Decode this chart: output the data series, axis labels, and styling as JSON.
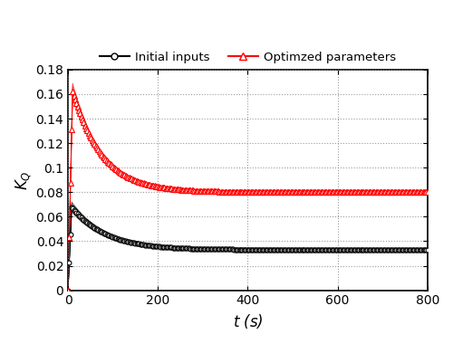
{
  "xlabel": "$t$ (s)",
  "ylabel": "$K_Q$",
  "xlim": [
    0,
    800
  ],
  "ylim": [
    0,
    0.18
  ],
  "yticks": [
    0,
    0.02,
    0.04,
    0.06,
    0.08,
    0.1,
    0.12,
    0.14,
    0.16,
    0.18
  ],
  "xticks": [
    0,
    200,
    400,
    600,
    800
  ],
  "legend_labels": [
    "Initial inputs",
    "Optimzed parameters"
  ],
  "line1_color": "black",
  "line2_color": "red",
  "marker1": "o",
  "marker2": "^",
  "background_color": "white",
  "figsize": [
    5.0,
    3.8
  ],
  "dpi": 100,
  "initial_peak": 0.068,
  "initial_steady": 0.033,
  "optimized_peak": 0.163,
  "optimized_steady": 0.08,
  "initial_peak_time": 8,
  "optimized_peak_time": 10,
  "initial_decay_tau": 75,
  "optimized_decay_tau": 65,
  "n_band_traces": 6,
  "band_spread": 0.004
}
